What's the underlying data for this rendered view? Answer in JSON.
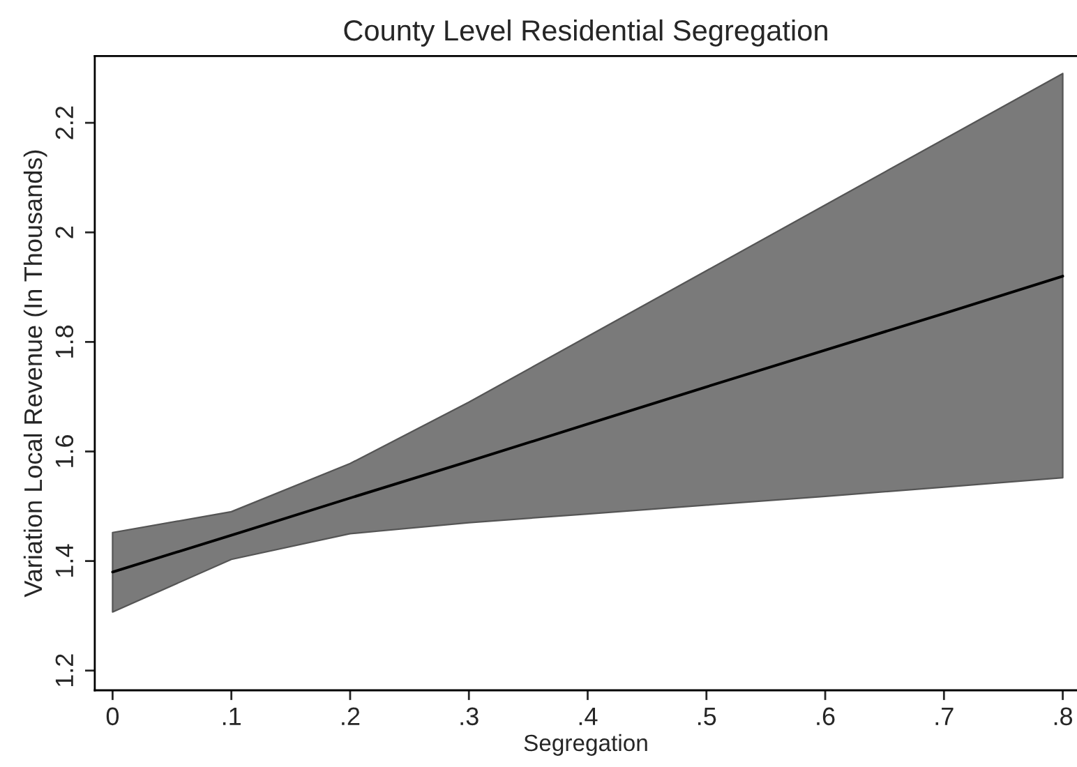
{
  "chart_data": {
    "type": "line",
    "title": "County Level Residential Segregation",
    "xlabel": "Segregation",
    "ylabel": "Variation Local Revenue (In Thousands)",
    "x": [
      0,
      0.1,
      0.2,
      0.3,
      0.4,
      0.5,
      0.6,
      0.7,
      0.8
    ],
    "series": [
      {
        "color": "#000000",
        "values": [
          1.38,
          1.447,
          1.515,
          1.582,
          1.65,
          1.718,
          1.785,
          1.852,
          1.92
        ],
        "lower": [
          1.307,
          1.403,
          1.45,
          1.47,
          1.486,
          1.502,
          1.518,
          1.535,
          1.552
        ],
        "upper": [
          1.452,
          1.49,
          1.578,
          1.69,
          1.81,
          1.93,
          2.05,
          2.17,
          2.29
        ]
      }
    ],
    "xlim": [
      -0.015,
      0.812
    ],
    "ylim": [
      1.164,
      2.322
    ],
    "xticks": [
      0,
      {
        "value": 0.1,
        "label": ".1"
      },
      {
        "value": 0.2,
        "label": ".2"
      },
      {
        "value": 0.3,
        "label": ".3"
      },
      {
        "value": 0.4,
        "label": ".4"
      },
      {
        "value": 0.5,
        "label": ".5"
      },
      {
        "value": 0.6,
        "label": ".6"
      },
      {
        "value": 0.7,
        "label": ".7"
      },
      {
        "value": 0.8,
        "label": ".8"
      }
    ],
    "yticks": [
      1.2,
      1.4,
      1.6,
      1.8,
      2,
      2.2
    ],
    "grid": false
  }
}
